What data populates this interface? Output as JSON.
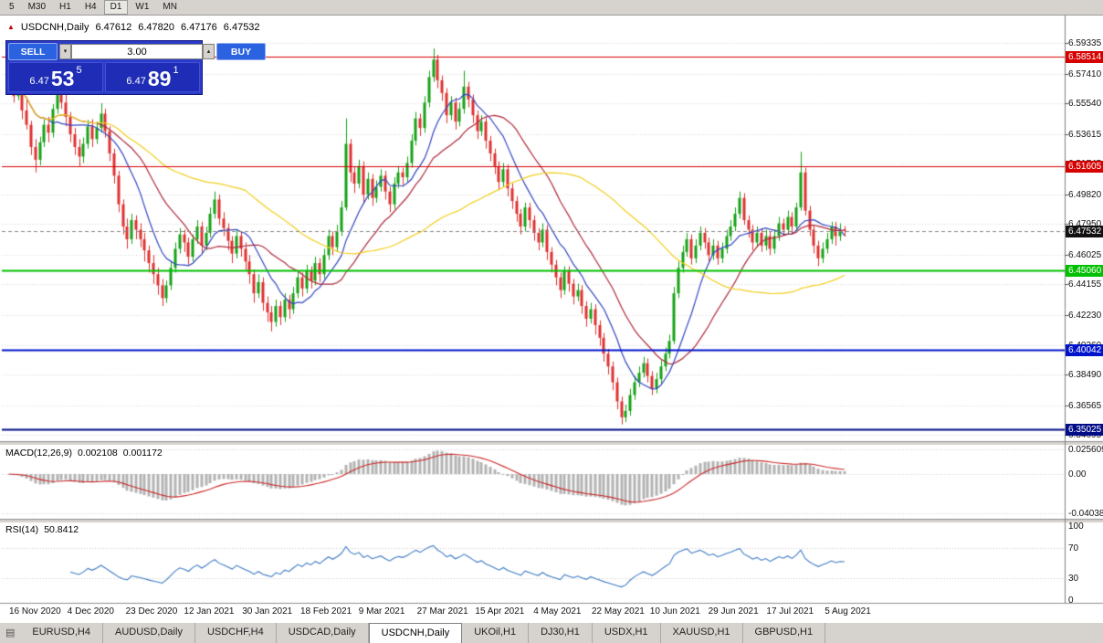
{
  "toolbar": {
    "periods": [
      "5",
      "M30",
      "H1",
      "H4",
      "D1",
      "W1",
      "MN"
    ],
    "active_period": "D1"
  },
  "chart": {
    "title": {
      "symbol": "USDCNH,Daily",
      "open": "6.47612",
      "high": "6.47820",
      "low": "6.47176",
      "close": "6.47532"
    },
    "trading_panel": {
      "sell_label": "SELL",
      "buy_label": "BUY",
      "volume": "3.00",
      "sell_price": {
        "prefix": "6.47",
        "big": "53",
        "sup": "5"
      },
      "buy_price": {
        "prefix": "6.47",
        "big": "89",
        "sup": "1"
      },
      "colors": {
        "panel": "#2b3bc8",
        "button": "#2a62e0",
        "price": "#1e2cb6"
      }
    },
    "price_axis": {
      "ticks": [
        "6.59335",
        "6.57410",
        "6.55540",
        "6.53615",
        "6.51745",
        "6.49820",
        "6.47950",
        "6.46025",
        "6.44155",
        "6.42230",
        "6.40360",
        "6.38490",
        "6.36565",
        "6.34695"
      ],
      "current": {
        "label": "6.47532",
        "color": "#111111"
      }
    },
    "levels": [
      {
        "price": 6.58514,
        "label": "6.58514",
        "color": "#d60000",
        "width": 1
      },
      {
        "price": 6.51605,
        "label": "6.51605",
        "color": "#d60000",
        "width": 1
      },
      {
        "price": 6.4506,
        "label": "6.45060",
        "color": "#00c000",
        "width": 2
      },
      {
        "price": 6.40042,
        "label": "6.40042",
        "color": "#0014cc",
        "width": 2
      },
      {
        "price": 6.35025,
        "label": "6.35025",
        "color": "#000d86",
        "width": 2
      }
    ],
    "indicators": {
      "macd": {
        "name": "MACD(12,26,9)",
        "value": "0.002108",
        "signal_value": "0.001172",
        "axis_labels": [
          "0.025609",
          "0.00",
          "-0.04038"
        ]
      },
      "rsi": {
        "name": "RSI(14)",
        "value": "50.8412",
        "axis_labels": [
          "100",
          "70",
          "30",
          "0"
        ]
      }
    }
  },
  "chart_data": {
    "type": "candlestick",
    "symbol": "USDCNH",
    "timeframe": "Daily",
    "up_color": "#17a317",
    "down_color": "#e03232",
    "y_range": [
      6.343,
      6.5975
    ],
    "x_labels": [
      "16 Nov 2020",
      "4 Dec 2020",
      "23 Dec 2020",
      "12 Jan 2021",
      "30 Jan 2021",
      "18 Feb 2021",
      "9 Mar 2021",
      "27 Mar 2021",
      "15 Apr 2021",
      "4 May 2021",
      "22 May 2021",
      "10 Jun 2021",
      "29 Jun 2021",
      "17 Jul 2021",
      "5 Aug 2021"
    ],
    "moving_averages": [
      {
        "period": 10,
        "color": "#3346c2"
      },
      {
        "period": 21,
        "color": "#b02a3c"
      },
      {
        "period": 55,
        "color": "#f2cf1d"
      }
    ],
    "macd": {
      "fast": 12,
      "slow": 26,
      "signal": 9,
      "histogram_color": "#b4b4b4",
      "signal_color": "#cc2a2a"
    },
    "rsi": {
      "period": 14,
      "color": "#3f7cc4",
      "guide_levels": [
        70,
        30
      ]
    },
    "candles": [
      [
        6.58,
        6.5832,
        6.5688,
        6.574
      ],
      [
        6.574,
        6.5768,
        6.556,
        6.56
      ],
      [
        6.56,
        6.5705,
        6.5575,
        6.567
      ],
      [
        6.567,
        6.569,
        6.5455,
        6.551
      ],
      [
        6.551,
        6.5585,
        6.539,
        6.542
      ],
      [
        6.542,
        6.5445,
        6.523,
        6.528
      ],
      [
        6.528,
        6.533,
        6.512,
        6.52
      ],
      [
        6.52,
        6.5345,
        6.5165,
        6.531
      ],
      [
        6.531,
        6.5455,
        6.528,
        6.542
      ],
      [
        6.542,
        6.547,
        6.531,
        6.537
      ],
      [
        6.537,
        6.555,
        6.534,
        6.552
      ],
      [
        6.552,
        6.5755,
        6.549,
        6.568
      ],
      [
        6.568,
        6.571,
        6.552,
        6.556
      ],
      [
        6.556,
        6.562,
        6.541,
        6.547
      ],
      [
        6.547,
        6.55,
        6.531,
        6.536
      ],
      [
        6.536,
        6.54,
        6.523,
        6.528
      ],
      [
        6.528,
        6.533,
        6.516,
        6.522
      ],
      [
        6.522,
        6.534,
        6.518,
        6.53
      ],
      [
        6.53,
        6.545,
        6.527,
        6.541
      ],
      [
        6.541,
        6.5455,
        6.528,
        6.533
      ],
      [
        6.533,
        6.544,
        6.53,
        6.54
      ],
      [
        6.54,
        6.5555,
        6.537,
        6.549
      ],
      [
        6.549,
        6.552,
        6.534,
        6.538
      ],
      [
        6.538,
        6.541,
        6.519,
        6.524
      ],
      [
        6.524,
        6.527,
        6.505,
        6.51
      ],
      [
        6.51,
        6.513,
        6.487,
        6.492
      ],
      [
        6.492,
        6.495,
        6.473,
        6.478
      ],
      [
        6.478,
        6.483,
        6.464,
        6.47
      ],
      [
        6.47,
        6.486,
        6.467,
        6.482
      ],
      [
        6.482,
        6.485,
        6.47,
        6.476
      ],
      [
        6.476,
        6.48,
        6.465,
        6.47
      ],
      [
        6.47,
        6.474,
        6.456,
        6.463
      ],
      [
        6.463,
        6.466,
        6.449,
        6.455
      ],
      [
        6.455,
        6.46,
        6.442,
        6.448
      ],
      [
        6.448,
        6.452,
        6.435,
        6.441
      ],
      [
        6.441,
        6.445,
        6.428,
        6.433
      ],
      [
        6.433,
        6.444,
        6.43,
        6.441
      ],
      [
        6.441,
        6.456,
        6.438,
        6.452
      ],
      [
        6.452,
        6.468,
        6.449,
        6.464
      ],
      [
        6.464,
        6.477,
        6.461,
        6.473
      ],
      [
        6.473,
        6.476,
        6.462,
        6.468
      ],
      [
        6.468,
        6.471,
        6.454,
        6.459
      ],
      [
        6.459,
        6.473,
        6.456,
        6.47
      ],
      [
        6.47,
        6.482,
        6.467,
        6.478
      ],
      [
        6.478,
        6.481,
        6.461,
        6.466
      ],
      [
        6.466,
        6.478,
        6.463,
        6.474
      ],
      [
        6.474,
        6.49,
        6.471,
        6.486
      ],
      [
        6.486,
        6.5,
        6.483,
        6.495
      ],
      [
        6.495,
        6.498,
        6.479,
        6.483
      ],
      [
        6.483,
        6.487,
        6.472,
        6.477
      ],
      [
        6.477,
        6.48,
        6.463,
        6.469
      ],
      [
        6.469,
        6.472,
        6.455,
        6.461
      ],
      [
        6.461,
        6.476,
        6.458,
        6.472
      ],
      [
        6.472,
        6.475,
        6.459,
        6.464
      ],
      [
        6.464,
        6.468,
        6.45,
        6.456
      ],
      [
        6.456,
        6.46,
        6.442,
        6.448
      ],
      [
        6.448,
        6.451,
        6.43,
        6.436
      ],
      [
        6.436,
        6.448,
        6.433,
        6.443
      ],
      [
        6.443,
        6.446,
        6.425,
        6.43
      ],
      [
        6.43,
        6.434,
        6.418,
        6.424
      ],
      [
        6.424,
        6.428,
        6.412,
        6.418
      ],
      [
        6.418,
        6.432,
        6.415,
        6.428
      ],
      [
        6.428,
        6.431,
        6.416,
        6.421
      ],
      [
        6.421,
        6.436,
        6.418,
        6.432
      ],
      [
        6.432,
        6.435,
        6.42,
        6.426
      ],
      [
        6.426,
        6.44,
        6.423,
        6.436
      ],
      [
        6.436,
        6.45,
        6.433,
        6.446
      ],
      [
        6.446,
        6.449,
        6.434,
        6.439
      ],
      [
        6.439,
        6.454,
        6.436,
        6.45
      ],
      [
        6.45,
        6.453,
        6.439,
        6.444
      ],
      [
        6.444,
        6.459,
        6.441,
        6.455
      ],
      [
        6.455,
        6.458,
        6.443,
        6.448
      ],
      [
        6.448,
        6.464,
        6.445,
        6.46
      ],
      [
        6.46,
        6.476,
        6.457,
        6.472
      ],
      [
        6.472,
        6.475,
        6.46,
        6.465
      ],
      [
        6.465,
        6.479,
        6.462,
        6.475
      ],
      [
        6.475,
        6.494,
        6.472,
        6.49
      ],
      [
        6.49,
        6.546,
        6.488,
        6.53
      ],
      [
        6.53,
        6.533,
        6.506,
        6.512
      ],
      [
        6.512,
        6.516,
        6.499,
        6.505
      ],
      [
        6.505,
        6.52,
        6.502,
        6.516
      ],
      [
        6.516,
        6.519,
        6.493,
        6.498
      ],
      [
        6.498,
        6.512,
        6.495,
        6.508
      ],
      [
        6.508,
        6.511,
        6.491,
        6.496
      ],
      [
        6.496,
        6.507,
        6.493,
        6.503
      ],
      [
        6.503,
        6.514,
        6.5,
        6.51
      ],
      [
        6.51,
        6.513,
        6.495,
        6.5
      ],
      [
        6.5,
        6.503,
        6.487,
        6.492
      ],
      [
        6.492,
        6.509,
        6.489,
        6.505
      ],
      [
        6.505,
        6.516,
        6.502,
        6.512
      ],
      [
        6.512,
        6.515,
        6.504,
        6.509
      ],
      [
        6.509,
        6.522,
        6.506,
        6.518
      ],
      [
        6.518,
        6.536,
        6.515,
        6.532
      ],
      [
        6.532,
        6.55,
        6.529,
        6.546
      ],
      [
        6.546,
        6.549,
        6.535,
        6.54
      ],
      [
        6.54,
        6.56,
        6.537,
        6.556
      ],
      [
        6.556,
        6.576,
        6.553,
        6.572
      ],
      [
        6.572,
        6.59,
        6.569,
        6.583
      ],
      [
        6.583,
        6.586,
        6.565,
        6.57
      ],
      [
        6.57,
        6.573,
        6.557,
        6.562
      ],
      [
        6.562,
        6.565,
        6.543,
        6.548
      ],
      [
        6.548,
        6.56,
        6.545,
        6.556
      ],
      [
        6.556,
        6.559,
        6.539,
        6.544
      ],
      [
        6.544,
        6.556,
        6.541,
        6.552
      ],
      [
        6.552,
        6.576,
        6.549,
        6.566
      ],
      [
        6.566,
        6.569,
        6.553,
        6.558
      ],
      [
        6.558,
        6.561,
        6.543,
        6.548
      ],
      [
        6.548,
        6.551,
        6.533,
        6.538
      ],
      [
        6.538,
        6.548,
        6.535,
        6.544
      ],
      [
        6.544,
        6.547,
        6.527,
        6.532
      ],
      [
        6.532,
        6.535,
        6.519,
        6.524
      ],
      [
        6.524,
        6.527,
        6.511,
        6.516
      ],
      [
        6.516,
        6.519,
        6.501,
        6.506
      ],
      [
        6.506,
        6.518,
        6.503,
        6.514
      ],
      [
        6.514,
        6.517,
        6.497,
        6.502
      ],
      [
        6.502,
        6.505,
        6.489,
        6.494
      ],
      [
        6.494,
        6.497,
        6.481,
        6.486
      ],
      [
        6.486,
        6.489,
        6.473,
        6.478
      ],
      [
        6.478,
        6.493,
        6.475,
        6.49
      ],
      [
        6.49,
        6.493,
        6.477,
        6.482
      ],
      [
        6.482,
        6.485,
        6.469,
        6.474
      ],
      [
        6.474,
        6.477,
        6.463,
        6.468
      ],
      [
        6.468,
        6.48,
        6.465,
        6.476
      ],
      [
        6.476,
        6.479,
        6.457,
        6.462
      ],
      [
        6.462,
        6.465,
        6.449,
        6.454
      ],
      [
        6.454,
        6.457,
        6.441,
        6.446
      ],
      [
        6.446,
        6.449,
        6.433,
        6.438
      ],
      [
        6.438,
        6.453,
        6.435,
        6.45
      ],
      [
        6.45,
        6.453,
        6.437,
        6.442
      ],
      [
        6.442,
        6.445,
        6.429,
        6.434
      ],
      [
        6.434,
        6.442,
        6.431,
        6.438
      ],
      [
        6.438,
        6.441,
        6.423,
        6.428
      ],
      [
        6.428,
        6.431,
        6.415,
        6.42
      ],
      [
        6.42,
        6.43,
        6.417,
        6.426
      ],
      [
        6.426,
        6.429,
        6.41,
        6.416
      ],
      [
        6.416,
        6.419,
        6.403,
        6.408
      ],
      [
        6.408,
        6.411,
        6.393,
        6.398
      ],
      [
        6.398,
        6.401,
        6.385,
        6.39
      ],
      [
        6.39,
        6.393,
        6.375,
        6.38
      ],
      [
        6.38,
        6.383,
        6.363,
        6.368
      ],
      [
        6.368,
        6.371,
        6.3535,
        6.358
      ],
      [
        6.358,
        6.366,
        6.355,
        6.362
      ],
      [
        6.362,
        6.376,
        6.359,
        6.372
      ],
      [
        6.372,
        6.384,
        6.369,
        6.38
      ],
      [
        6.38,
        6.39,
        6.377,
        6.386
      ],
      [
        6.386,
        6.396,
        6.383,
        6.392
      ],
      [
        6.392,
        6.395,
        6.38,
        6.384
      ],
      [
        6.384,
        6.387,
        6.372,
        6.376
      ],
      [
        6.376,
        6.386,
        6.373,
        6.382
      ],
      [
        6.382,
        6.394,
        6.379,
        6.39
      ],
      [
        6.39,
        6.402,
        6.387,
        6.398
      ],
      [
        6.398,
        6.41,
        6.395,
        6.406
      ],
      [
        6.406,
        6.44,
        6.404,
        6.436
      ],
      [
        6.436,
        6.456,
        6.433,
        6.452
      ],
      [
        6.452,
        6.466,
        6.449,
        6.462
      ],
      [
        6.462,
        6.474,
        6.459,
        6.47
      ],
      [
        6.47,
        6.473,
        6.454,
        6.458
      ],
      [
        6.458,
        6.47,
        6.455,
        6.466
      ],
      [
        6.466,
        6.478,
        6.463,
        6.474
      ],
      [
        6.474,
        6.477,
        6.464,
        6.468
      ],
      [
        6.468,
        6.471,
        6.456,
        6.46
      ],
      [
        6.46,
        6.47,
        6.457,
        6.466
      ],
      [
        6.466,
        6.469,
        6.454,
        6.458
      ],
      [
        6.458,
        6.468,
        6.455,
        6.464
      ],
      [
        6.464,
        6.476,
        6.461,
        6.472
      ],
      [
        6.472,
        6.482,
        6.469,
        6.478
      ],
      [
        6.478,
        6.49,
        6.475,
        6.486
      ],
      [
        6.486,
        6.5,
        6.483,
        6.496
      ],
      [
        6.496,
        6.499,
        6.479,
        6.482
      ],
      [
        6.482,
        6.485,
        6.471,
        6.476
      ],
      [
        6.476,
        6.479,
        6.463,
        6.468
      ],
      [
        6.468,
        6.478,
        6.465,
        6.474
      ],
      [
        6.474,
        6.477,
        6.462,
        6.466
      ],
      [
        6.466,
        6.476,
        6.463,
        6.472
      ],
      [
        6.472,
        6.475,
        6.46,
        6.464
      ],
      [
        6.464,
        6.476,
        6.461,
        6.472
      ],
      [
        6.472,
        6.484,
        6.469,
        6.48
      ],
      [
        6.48,
        6.483,
        6.472,
        6.476
      ],
      [
        6.476,
        6.488,
        6.473,
        6.484
      ],
      [
        6.484,
        6.487,
        6.473,
        6.478
      ],
      [
        6.478,
        6.493,
        6.475,
        6.49
      ],
      [
        6.49,
        6.525,
        6.488,
        6.512
      ],
      [
        6.512,
        6.515,
        6.485,
        6.488
      ],
      [
        6.488,
        6.491,
        6.472,
        6.476
      ],
      [
        6.476,
        6.479,
        6.461,
        6.466
      ],
      [
        6.466,
        6.469,
        6.453,
        6.458
      ],
      [
        6.458,
        6.468,
        6.455,
        6.464
      ],
      [
        6.464,
        6.474,
        6.461,
        6.47
      ],
      [
        6.47,
        6.481,
        6.467,
        6.478
      ],
      [
        6.478,
        6.481,
        6.466,
        6.472
      ],
      [
        6.472,
        6.48,
        6.469,
        6.4761
      ],
      [
        6.47612,
        6.4782,
        6.47176,
        6.47532
      ]
    ]
  },
  "bottom_tabs": [
    {
      "label": "EURUSD,H4"
    },
    {
      "label": "AUDUSD,Daily"
    },
    {
      "label": "USDCHF,H4"
    },
    {
      "label": "USDCAD,Daily"
    },
    {
      "label": "USDCNH,Daily",
      "active": true
    },
    {
      "label": "UKOil,H1"
    },
    {
      "label": "DJ30,H1"
    },
    {
      "label": "USDX,H1"
    },
    {
      "label": "XAUUSD,H1"
    },
    {
      "label": "GBPUSD,H1"
    }
  ]
}
